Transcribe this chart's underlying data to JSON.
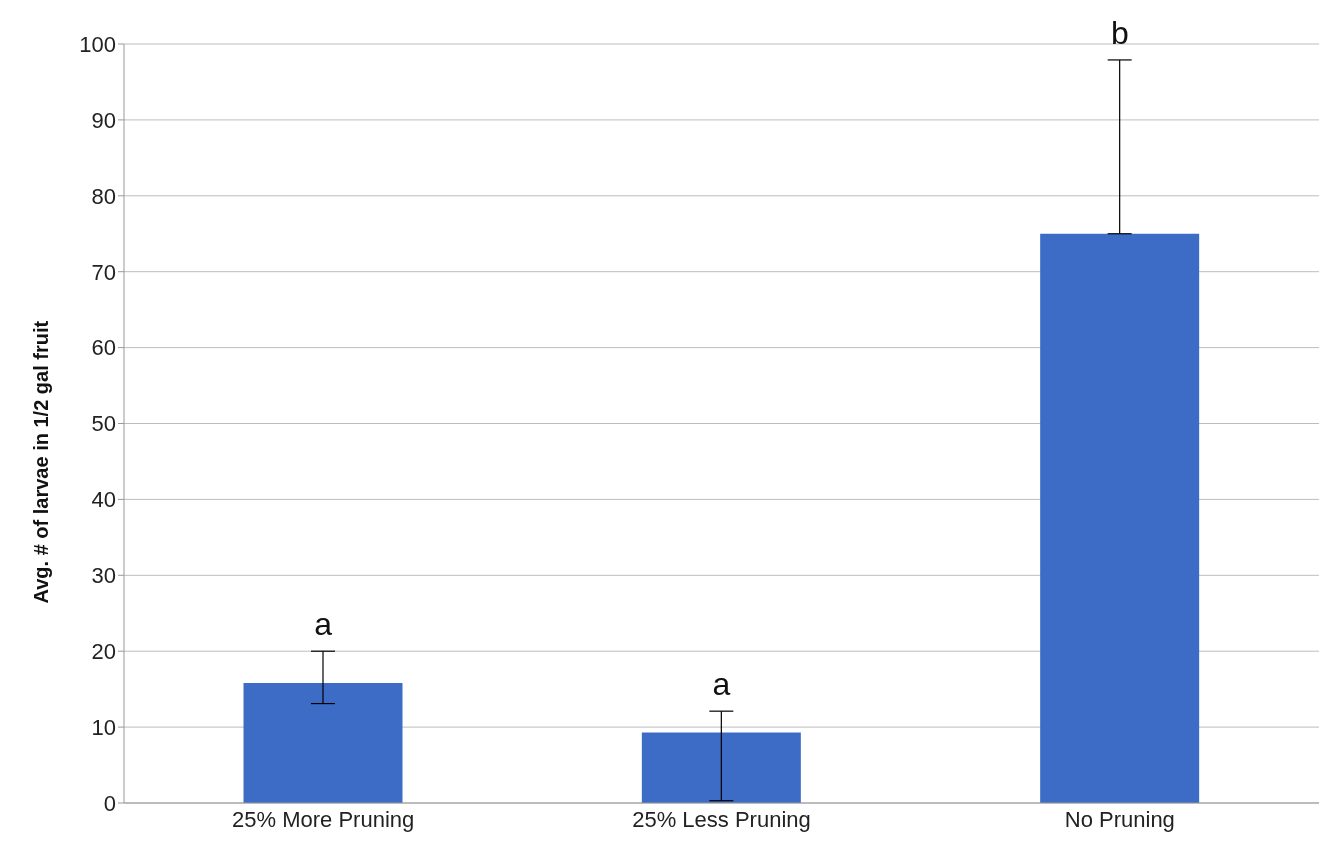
{
  "chart_data": {
    "type": "bar",
    "ylabel": "Avg. # of larvae in 1/2 gal fruit",
    "categories": [
      "25% More Pruning",
      "25% Less Pruning",
      "No Pruning"
    ],
    "values": [
      15.8,
      9.3,
      75.0
    ],
    "errors": [
      [
        13.1,
        20.0
      ],
      [
        0.3,
        12.1
      ],
      [
        75.0,
        97.9
      ]
    ],
    "color": "#3d6cc6",
    "ylim": [
      0,
      100
    ],
    "yticks": [
      0,
      10,
      20,
      30,
      40,
      50,
      60,
      70,
      80,
      90,
      100
    ],
    "grid": "y",
    "annotations": [
      {
        "text": "a",
        "x": "25% More Pruning",
        "y": 20.0
      },
      {
        "text": "a",
        "x": "25% Less Pruning",
        "y": 12.1
      },
      {
        "text": "b",
        "x": "No Pruning",
        "y": 97.9
      }
    ]
  }
}
